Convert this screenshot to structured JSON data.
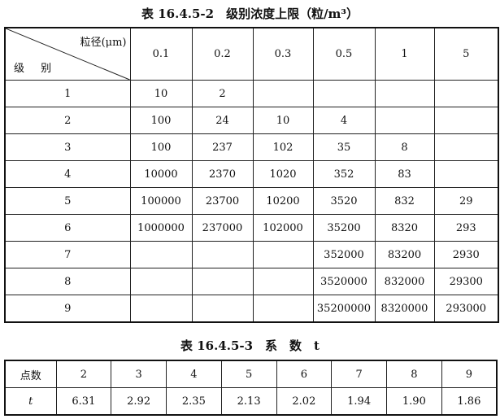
{
  "table1": {
    "title": "表 16.4.5-2　级别浓度上限（粒/m³）",
    "corner_top": "粒径(μm)",
    "corner_bottom": "级 别",
    "columns": [
      "0.1",
      "0.2",
      "0.3",
      "0.5",
      "1",
      "5"
    ],
    "rows": [
      {
        "grade": "1",
        "values": [
          "10",
          "2",
          "",
          "",
          "",
          ""
        ]
      },
      {
        "grade": "2",
        "values": [
          "100",
          "24",
          "10",
          "4",
          "",
          ""
        ]
      },
      {
        "grade": "3",
        "values": [
          "100",
          "237",
          "102",
          "35",
          "8",
          ""
        ]
      },
      {
        "grade": "4",
        "values": [
          "10000",
          "2370",
          "1020",
          "352",
          "83",
          ""
        ]
      },
      {
        "grade": "5",
        "values": [
          "100000",
          "23700",
          "10200",
          "3520",
          "832",
          "29"
        ]
      },
      {
        "grade": "6",
        "values": [
          "1000000",
          "237000",
          "102000",
          "35200",
          "8320",
          "293"
        ]
      },
      {
        "grade": "7",
        "values": [
          "",
          "",
          "",
          "352000",
          "83200",
          "2930"
        ]
      },
      {
        "grade": "8",
        "values": [
          "",
          "",
          "",
          "3520000",
          "832000",
          "29300"
        ]
      },
      {
        "grade": "9",
        "values": [
          "",
          "",
          "",
          "35200000",
          "8320000",
          "293000"
        ]
      }
    ]
  },
  "table2": {
    "title": "表 16.4.5-3　系　数　t",
    "header_label": "点数",
    "points": [
      "2",
      "3",
      "4",
      "5",
      "6",
      "7",
      "8",
      "9"
    ],
    "row_label": "t",
    "t_values": [
      "6.31",
      "2.92",
      "2.35",
      "2.13",
      "2.02",
      "1.94",
      "1.90",
      "1.86"
    ]
  }
}
